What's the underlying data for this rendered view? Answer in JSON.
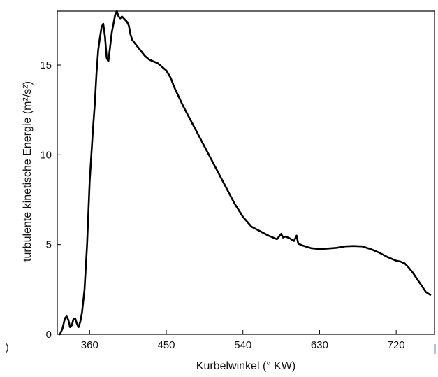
{
  "chart_data": {
    "type": "line",
    "title": "",
    "xlabel": "Kurbelwinkel (° KW)",
    "ylabel": "turbulente kinetische Energie (m²/s²)",
    "xlim": [
      322,
      765
    ],
    "ylim": [
      0,
      18
    ],
    "xticks": [
      360,
      450,
      540,
      630,
      720
    ],
    "yticks": [
      0,
      5,
      10,
      15
    ],
    "grid": false,
    "legend": "none",
    "series": [
      {
        "color": "#000000",
        "points": [
          [
            325,
            0.0
          ],
          [
            328,
            0.3
          ],
          [
            331,
            0.9
          ],
          [
            333,
            1.0
          ],
          [
            335,
            0.8
          ],
          [
            337,
            0.4
          ],
          [
            339,
            0.5
          ],
          [
            341,
            0.85
          ],
          [
            343,
            0.9
          ],
          [
            345,
            0.6
          ],
          [
            347,
            0.4
          ],
          [
            349,
            0.7
          ],
          [
            351,
            1.2
          ],
          [
            354,
            2.5
          ],
          [
            357,
            5.0
          ],
          [
            360,
            8.5
          ],
          [
            362,
            10.0
          ],
          [
            364,
            11.5
          ],
          [
            366,
            12.8
          ],
          [
            368,
            14.5
          ],
          [
            370,
            15.8
          ],
          [
            372,
            16.5
          ],
          [
            374,
            17.1
          ],
          [
            376,
            17.3
          ],
          [
            378,
            16.6
          ],
          [
            380,
            15.4
          ],
          [
            382,
            15.2
          ],
          [
            384,
            16.0
          ],
          [
            386,
            16.8
          ],
          [
            388,
            17.3
          ],
          [
            390,
            17.8
          ],
          [
            392,
            18.0
          ],
          [
            394,
            17.7
          ],
          [
            396,
            17.6
          ],
          [
            398,
            17.7
          ],
          [
            400,
            17.6
          ],
          [
            402,
            17.5
          ],
          [
            404,
            17.4
          ],
          [
            406,
            17.2
          ],
          [
            408,
            16.7
          ],
          [
            410,
            16.4
          ],
          [
            415,
            16.1
          ],
          [
            420,
            15.8
          ],
          [
            425,
            15.5
          ],
          [
            430,
            15.3
          ],
          [
            435,
            15.2
          ],
          [
            440,
            15.1
          ],
          [
            445,
            14.9
          ],
          [
            450,
            14.7
          ],
          [
            455,
            14.3
          ],
          [
            460,
            13.7
          ],
          [
            470,
            12.7
          ],
          [
            480,
            11.8
          ],
          [
            490,
            10.9
          ],
          [
            500,
            10.0
          ],
          [
            510,
            9.1
          ],
          [
            520,
            8.2
          ],
          [
            530,
            7.3
          ],
          [
            540,
            6.55
          ],
          [
            550,
            6.0
          ],
          [
            560,
            5.75
          ],
          [
            570,
            5.5
          ],
          [
            580,
            5.3
          ],
          [
            585,
            5.6
          ],
          [
            587,
            5.4
          ],
          [
            590,
            5.45
          ],
          [
            595,
            5.35
          ],
          [
            600,
            5.2
          ],
          [
            603,
            5.5
          ],
          [
            605,
            5.05
          ],
          [
            610,
            4.95
          ],
          [
            620,
            4.8
          ],
          [
            630,
            4.75
          ],
          [
            640,
            4.78
          ],
          [
            650,
            4.82
          ],
          [
            660,
            4.9
          ],
          [
            670,
            4.92
          ],
          [
            680,
            4.9
          ],
          [
            690,
            4.75
          ],
          [
            700,
            4.55
          ],
          [
            710,
            4.3
          ],
          [
            720,
            4.1
          ],
          [
            725,
            4.05
          ],
          [
            730,
            3.95
          ],
          [
            735,
            3.7
          ],
          [
            740,
            3.4
          ],
          [
            745,
            3.05
          ],
          [
            750,
            2.7
          ],
          [
            755,
            2.35
          ],
          [
            760,
            2.2
          ]
        ]
      }
    ]
  },
  "stray_left": ")"
}
